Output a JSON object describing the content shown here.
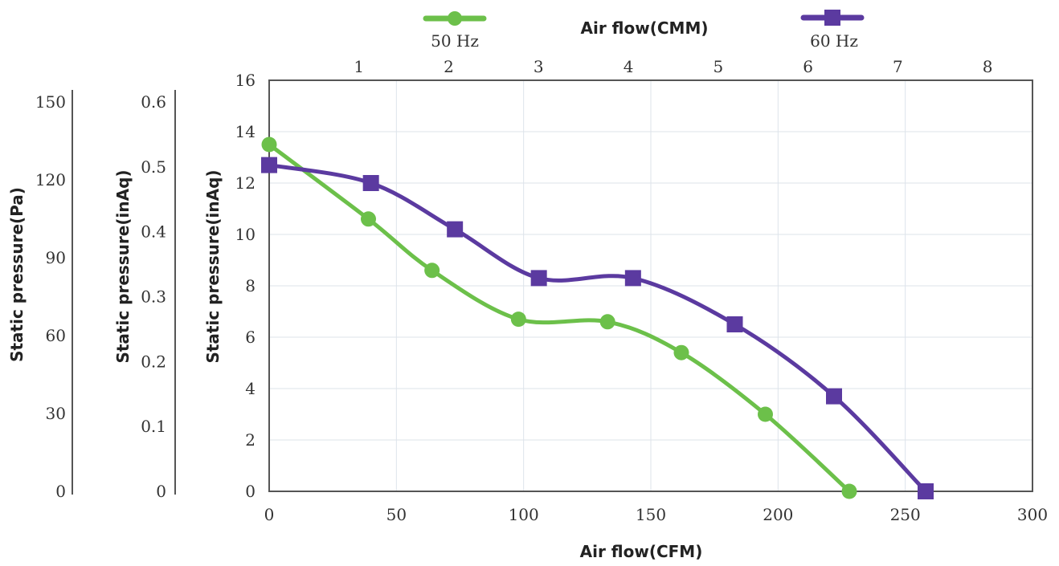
{
  "chart_data": {
    "type": "line",
    "title": "",
    "xlabel": "Air flow(CFM)",
    "x2label": "Air flow(CMM)",
    "ylabel": "Static pressure(inAq)",
    "ylabel_inaq": "Static pressure(inAq)",
    "ylabel_pa": "Static pressure(Pa)",
    "xlim": [
      0,
      300
    ],
    "ylim": [
      0,
      16
    ],
    "x_ticks": [
      0,
      50,
      100,
      150,
      200,
      250,
      300
    ],
    "y_ticks": [
      0,
      2,
      4,
      6,
      8,
      10,
      12,
      14,
      16
    ],
    "x2_ticks": [
      1,
      2,
      3,
      4,
      5,
      6,
      7,
      8
    ],
    "x2_range_at_x_zero_and_max": [
      0,
      8.5
    ],
    "inaq_ticks": [
      "0",
      "0.1",
      "0.2",
      "0.3",
      "0.4",
      "0.5",
      "0.6"
    ],
    "pa_ticks": [
      "0",
      "30",
      "60",
      "90",
      "120",
      "150"
    ],
    "grid": true,
    "legend_position": "top",
    "series": [
      {
        "name": "50 Hz",
        "color": "#6cc04a",
        "marker": "circle",
        "x": [
          0,
          39,
          64,
          98,
          133,
          162,
          195,
          228
        ],
        "y": [
          13.5,
          10.6,
          8.6,
          6.7,
          6.6,
          5.4,
          3.0,
          0
        ]
      },
      {
        "name": "60 Hz",
        "color": "#5b3aa0",
        "marker": "square",
        "x": [
          0,
          40,
          73,
          106,
          143,
          183,
          222,
          258
        ],
        "y": [
          12.7,
          12.0,
          10.2,
          8.3,
          8.3,
          6.5,
          3.7,
          0
        ]
      }
    ]
  }
}
